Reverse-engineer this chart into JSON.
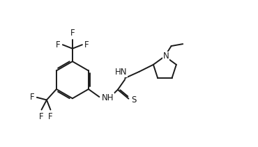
{
  "bg_color": "#ffffff",
  "line_color": "#1a1a1a",
  "lw": 1.4,
  "fs": 8.5,
  "figsize": [
    3.7,
    2.11
  ],
  "dpi": 100,
  "xlim": [
    0.0,
    10.0
  ],
  "ylim": [
    0.5,
    6.0
  ]
}
